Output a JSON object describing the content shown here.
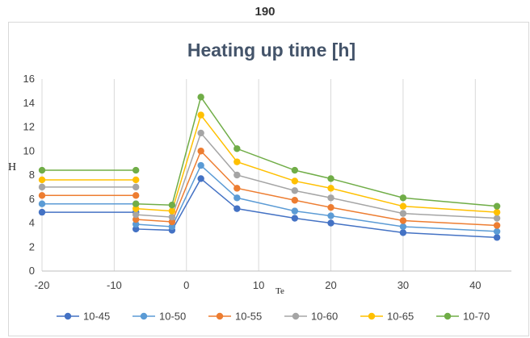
{
  "page_label": "190",
  "chart_data": {
    "type": "line",
    "title": "Heating up time [h]",
    "ylabel": "H",
    "xlabel": "Te",
    "xlim": [
      -20,
      45
    ],
    "ylim": [
      0,
      16
    ],
    "x_ticks": [
      -20,
      -10,
      0,
      10,
      20,
      30,
      40
    ],
    "y_ticks": [
      0,
      2,
      4,
      6,
      8,
      10,
      12,
      14,
      16
    ],
    "grid": "vertical",
    "legend_position": "bottom",
    "series": [
      {
        "name": "10-45",
        "color": "#4472c4",
        "segments": [
          [
            [
              -20,
              4.9
            ],
            [
              -7,
              4.9
            ]
          ],
          [
            [
              -7,
              3.5
            ],
            [
              -2,
              3.4
            ],
            [
              2,
              7.7
            ],
            [
              7,
              5.2
            ],
            [
              15,
              4.4
            ],
            [
              20,
              4.0
            ],
            [
              30,
              3.2
            ],
            [
              43,
              2.8
            ]
          ]
        ]
      },
      {
        "name": "10-50",
        "color": "#5b9bd5",
        "segments": [
          [
            [
              -20,
              5.6
            ],
            [
              -7,
              5.6
            ]
          ],
          [
            [
              -7,
              3.9
            ],
            [
              -2,
              3.7
            ],
            [
              2,
              8.8
            ],
            [
              7,
              6.1
            ],
            [
              15,
              5.0
            ],
            [
              20,
              4.6
            ],
            [
              30,
              3.7
            ],
            [
              43,
              3.3
            ]
          ]
        ]
      },
      {
        "name": "10-55",
        "color": "#ed7d31",
        "segments": [
          [
            [
              -20,
              6.3
            ],
            [
              -7,
              6.3
            ]
          ],
          [
            [
              -7,
              4.3
            ],
            [
              -2,
              4.1
            ],
            [
              2,
              10.0
            ],
            [
              7,
              6.9
            ],
            [
              15,
              5.9
            ],
            [
              20,
              5.3
            ],
            [
              30,
              4.2
            ],
            [
              43,
              3.8
            ]
          ]
        ]
      },
      {
        "name": "10-60",
        "color": "#a5a5a5",
        "segments": [
          [
            [
              -20,
              7.0
            ],
            [
              -7,
              7.0
            ]
          ],
          [
            [
              -7,
              4.7
            ],
            [
              -2,
              4.5
            ],
            [
              2,
              11.5
            ],
            [
              7,
              8.0
            ],
            [
              15,
              6.7
            ],
            [
              20,
              6.1
            ],
            [
              30,
              4.8
            ],
            [
              43,
              4.4
            ]
          ]
        ]
      },
      {
        "name": "10-65",
        "color": "#ffc000",
        "segments": [
          [
            [
              -20,
              7.6
            ],
            [
              -7,
              7.6
            ]
          ],
          [
            [
              -7,
              5.2
            ],
            [
              -2,
              5.0
            ],
            [
              2,
              13.0
            ],
            [
              7,
              9.1
            ],
            [
              15,
              7.5
            ],
            [
              20,
              6.9
            ],
            [
              30,
              5.4
            ],
            [
              43,
              4.9
            ]
          ]
        ]
      },
      {
        "name": "10-70",
        "color": "#70ad47",
        "segments": [
          [
            [
              -20,
              8.4
            ],
            [
              -7,
              8.4
            ]
          ],
          [
            [
              -7,
              5.6
            ],
            [
              -2,
              5.5
            ],
            [
              2,
              14.5
            ],
            [
              7,
              10.2
            ],
            [
              15,
              8.4
            ],
            [
              20,
              7.7
            ],
            [
              30,
              6.1
            ],
            [
              43,
              5.4
            ]
          ]
        ]
      }
    ]
  }
}
